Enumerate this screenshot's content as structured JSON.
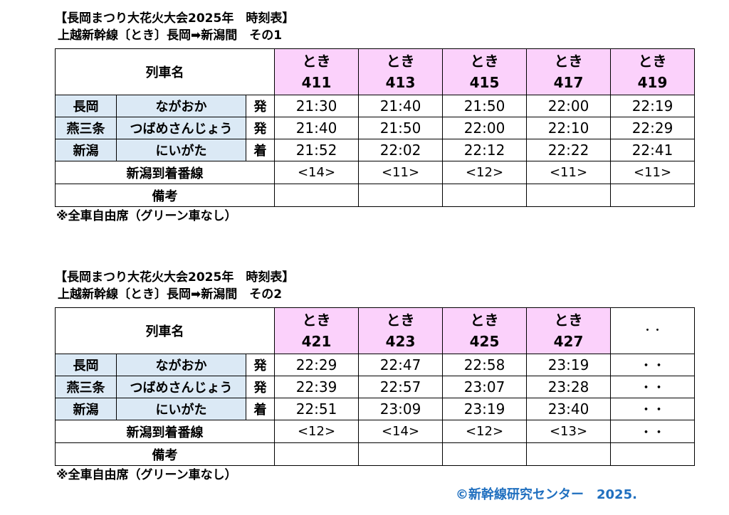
{
  "sections": [
    {
      "title": "【長岡まつり大花火大会2025年　時刻表】",
      "subtitle": "上越新幹線〔とき〕長岡➡新潟間　その1",
      "header_label": "列車名",
      "trains": [
        {
          "name": "とき",
          "number": "411"
        },
        {
          "name": "とき",
          "number": "413"
        },
        {
          "name": "とき",
          "number": "415"
        },
        {
          "name": "とき",
          "number": "417"
        },
        {
          "name": "とき",
          "number": "419"
        }
      ],
      "stations": [
        {
          "kanji": "長岡",
          "kana": "ながおか",
          "type": "発",
          "times": [
            "21:30",
            "21:40",
            "21:50",
            "22:00",
            "22:19"
          ]
        },
        {
          "kanji": "燕三条",
          "kana": "つばめさんじょう",
          "type": "発",
          "times": [
            "21:40",
            "21:50",
            "22:00",
            "22:10",
            "22:29"
          ]
        },
        {
          "kanji": "新潟",
          "kana": "にいがた",
          "type": "着",
          "times": [
            "21:52",
            "22:02",
            "22:12",
            "22:22",
            "22:41"
          ]
        }
      ],
      "platform_label": "新潟到着番線",
      "platforms": [
        "<14>",
        "<11>",
        "<12>",
        "<11>",
        "<11>"
      ],
      "remarks_label": "備考",
      "note": "※全車自由席（グリーン車なし）"
    },
    {
      "title": "【長岡まつり大花火大会2025年　時刻表】",
      "subtitle": "上越新幹線〔とき〕長岡➡新潟間　その2",
      "header_label": "列車名",
      "trains": [
        {
          "name": "とき",
          "number": "421"
        },
        {
          "name": "とき",
          "number": "423"
        },
        {
          "name": "とき",
          "number": "425"
        },
        {
          "name": "とき",
          "number": "427"
        },
        {
          "name": "・・",
          "number": ""
        }
      ],
      "stations": [
        {
          "kanji": "長岡",
          "kana": "ながおか",
          "type": "発",
          "times": [
            "22:29",
            "22:47",
            "22:58",
            "23:19",
            "・・"
          ]
        },
        {
          "kanji": "燕三条",
          "kana": "つばめさんじょう",
          "type": "発",
          "times": [
            "22:39",
            "22:57",
            "23:07",
            "23:28",
            "・・"
          ]
        },
        {
          "kanji": "新潟",
          "kana": "にいがた",
          "type": "着",
          "times": [
            "22:51",
            "23:09",
            "23:19",
            "23:40",
            "・・"
          ]
        }
      ],
      "platform_label": "新潟到着番線",
      "platforms": [
        "<12>",
        "<14>",
        "<12>",
        "<13>",
        "・・"
      ],
      "remarks_label": "備考",
      "note": "※全車自由席（グリーン車なし）"
    }
  ],
  "credit": "©新幹線研究センター　2025."
}
